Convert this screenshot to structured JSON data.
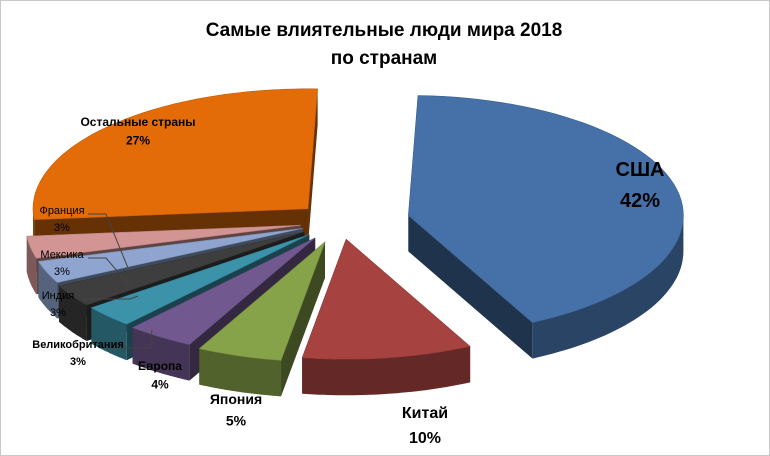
{
  "chart_data": {
    "type": "pie",
    "title_lines": [
      "Самые влиятельные люди мира 2018",
      "по странам"
    ],
    "series": [
      {
        "name": "США",
        "value": 42,
        "label": "42%",
        "color": "#4571a8"
      },
      {
        "name": "Китай",
        "value": 10,
        "label": "10%",
        "color": "#a64340"
      },
      {
        "name": "Япония",
        "value": 5,
        "label": "5%",
        "color": "#87a34a"
      },
      {
        "name": "Европа",
        "value": 4,
        "label": "4%",
        "color": "#71598f"
      },
      {
        "name": "Великобритания",
        "value": 3,
        "label": "3%",
        "color": "#3c93a9"
      },
      {
        "name": "Индия",
        "value": 3,
        "label": "3%",
        "color": "#3e3e3e"
      },
      {
        "name": "Мексика",
        "value": 3,
        "label": "3%",
        "color": "#8fa5cf"
      },
      {
        "name": "Франция",
        "value": 3,
        "label": "3%",
        "color": "#d29594"
      },
      {
        "name": "Остальные страны",
        "value": 27,
        "label": "27%",
        "color": "#e36c09"
      }
    ],
    "style": "3d-exploded"
  }
}
